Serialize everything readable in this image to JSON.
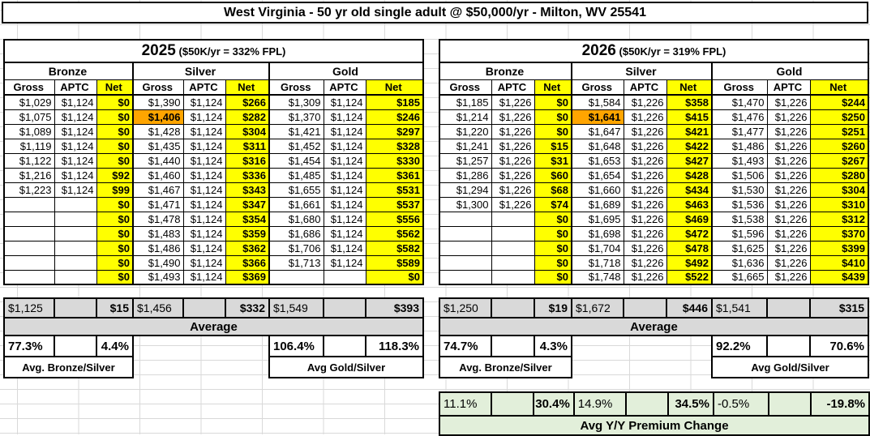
{
  "title": "West Virginia - 50 yr old single adult @ $50,000/yr - Milton, WV 25541",
  "colors": {
    "net_column": "#FFFF00",
    "highlight_cell": "#FFA500",
    "summary_bg": "#D9D9D9",
    "yoy_bg": "#E2EFDA"
  },
  "tables": [
    {
      "year": "2025",
      "fpl_note": "($50K/yr = 332% FPL)",
      "metals": [
        "Bronze",
        "Silver",
        "Gold"
      ],
      "columns": [
        "Gross",
        "APTC",
        "Net"
      ],
      "highlight": {
        "row": 1,
        "col": 3
      },
      "rows": [
        [
          "$1,029",
          "$1,124",
          "$0",
          "$1,390",
          "$1,124",
          "$266",
          "$1,309",
          "$1,124",
          "$185"
        ],
        [
          "$1,075",
          "$1,124",
          "$0",
          "$1,406",
          "$1,124",
          "$282",
          "$1,370",
          "$1,124",
          "$246"
        ],
        [
          "$1,089",
          "$1,124",
          "$0",
          "$1,428",
          "$1,124",
          "$304",
          "$1,421",
          "$1,124",
          "$297"
        ],
        [
          "$1,119",
          "$1,124",
          "$0",
          "$1,435",
          "$1,124",
          "$311",
          "$1,452",
          "$1,124",
          "$328"
        ],
        [
          "$1,122",
          "$1,124",
          "$0",
          "$1,440",
          "$1,124",
          "$316",
          "$1,454",
          "$1,124",
          "$330"
        ],
        [
          "$1,216",
          "$1,124",
          "$92",
          "$1,460",
          "$1,124",
          "$336",
          "$1,485",
          "$1,124",
          "$361"
        ],
        [
          "$1,223",
          "$1,124",
          "$99",
          "$1,467",
          "$1,124",
          "$343",
          "$1,655",
          "$1,124",
          "$531"
        ],
        [
          "",
          "",
          "$0",
          "$1,471",
          "$1,124",
          "$347",
          "$1,661",
          "$1,124",
          "$537"
        ],
        [
          "",
          "",
          "$0",
          "$1,478",
          "$1,124",
          "$354",
          "$1,680",
          "$1,124",
          "$556"
        ],
        [
          "",
          "",
          "$0",
          "$1,483",
          "$1,124",
          "$359",
          "$1,686",
          "$1,124",
          "$562"
        ],
        [
          "",
          "",
          "$0",
          "$1,486",
          "$1,124",
          "$362",
          "$1,706",
          "$1,124",
          "$582"
        ],
        [
          "",
          "",
          "$0",
          "$1,490",
          "$1,124",
          "$366",
          "$1,713",
          "$1,124",
          "$589"
        ],
        [
          "",
          "",
          "$0",
          "$1,493",
          "$1,124",
          "$369",
          "",
          "",
          "$0"
        ]
      ],
      "avg_row": [
        "$1,125",
        "",
        "$15",
        "$1,456",
        "",
        "$332",
        "$1,549",
        "",
        "$393"
      ],
      "avg_label": "Average",
      "percent_row": [
        "77.3%",
        "",
        "4.4%",
        "",
        "",
        "",
        "106.4%",
        "",
        "118.3%"
      ],
      "group_labels": [
        "Avg. Bronze/Silver",
        "Avg Gold/Silver"
      ]
    },
    {
      "year": "2026",
      "fpl_note": "($50K/yr = 319% FPL)",
      "metals": [
        "Bronze",
        "Silver",
        "Gold"
      ],
      "columns": [
        "Gross",
        "APTC",
        "Net"
      ],
      "highlight": {
        "row": 1,
        "col": 3
      },
      "rows": [
        [
          "$1,185",
          "$1,226",
          "$0",
          "$1,584",
          "$1,226",
          "$358",
          "$1,470",
          "$1,226",
          "$244"
        ],
        [
          "$1,214",
          "$1,226",
          "$0",
          "$1,641",
          "$1,226",
          "$415",
          "$1,476",
          "$1,226",
          "$250"
        ],
        [
          "$1,220",
          "$1,226",
          "$0",
          "$1,647",
          "$1,226",
          "$421",
          "$1,477",
          "$1,226",
          "$251"
        ],
        [
          "$1,241",
          "$1,226",
          "$15",
          "$1,648",
          "$1,226",
          "$422",
          "$1,486",
          "$1,226",
          "$260"
        ],
        [
          "$1,257",
          "$1,226",
          "$31",
          "$1,653",
          "$1,226",
          "$427",
          "$1,493",
          "$1,226",
          "$267"
        ],
        [
          "$1,286",
          "$1,226",
          "$60",
          "$1,654",
          "$1,226",
          "$428",
          "$1,506",
          "$1,226",
          "$280"
        ],
        [
          "$1,294",
          "$1,226",
          "$68",
          "$1,660",
          "$1,226",
          "$434",
          "$1,530",
          "$1,226",
          "$304"
        ],
        [
          "$1,300",
          "$1,226",
          "$74",
          "$1,689",
          "$1,226",
          "$463",
          "$1,536",
          "$1,226",
          "$310"
        ],
        [
          "",
          "",
          "$0",
          "$1,695",
          "$1,226",
          "$469",
          "$1,538",
          "$1,226",
          "$312"
        ],
        [
          "",
          "",
          "$0",
          "$1,698",
          "$1,226",
          "$472",
          "$1,596",
          "$1,226",
          "$370"
        ],
        [
          "",
          "",
          "$0",
          "$1,704",
          "$1,226",
          "$478",
          "$1,625",
          "$1,226",
          "$399"
        ],
        [
          "",
          "",
          "$0",
          "$1,718",
          "$1,226",
          "$492",
          "$1,636",
          "$1,226",
          "$410"
        ],
        [
          "",
          "",
          "$0",
          "$1,748",
          "$1,226",
          "$522",
          "$1,665",
          "$1,226",
          "$439"
        ]
      ],
      "avg_row": [
        "$1,250",
        "",
        "$19",
        "$1,672",
        "",
        "$446",
        "$1,541",
        "",
        "$315"
      ],
      "avg_label": "Average",
      "percent_row": [
        "74.7%",
        "",
        "4.3%",
        "",
        "",
        "",
        "92.2%",
        "",
        "70.6%"
      ],
      "group_labels": [
        "Avg. Bronze/Silver",
        "Avg Gold/Silver"
      ]
    }
  ],
  "yoy": {
    "values": [
      "11.1%",
      "",
      "30.4%",
      "14.9%",
      "",
      "34.5%",
      "-0.5%",
      "",
      "-19.8%"
    ],
    "label": "Avg Y/Y Premium Change"
  }
}
